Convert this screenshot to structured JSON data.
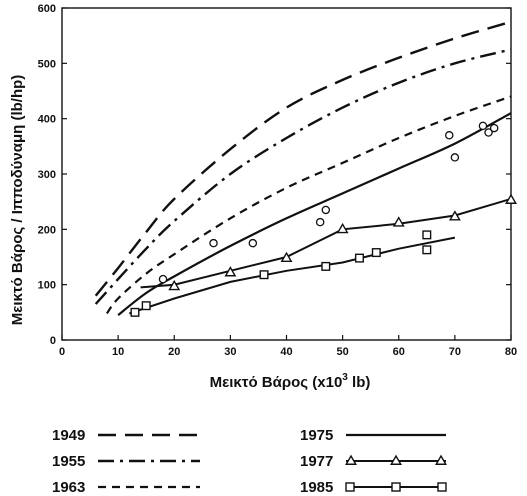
{
  "chart_data": {
    "type": "line",
    "xlabel": "Μεικτό Βάρος (x10",
    "xlabel_exponent": "3",
    "xlabel_unit": " lb)",
    "ylabel": "Μεικτό Βάρος / Ιπποδύναμη (lb/hp)",
    "xlim": [
      0,
      80
    ],
    "ylim": [
      0,
      600
    ],
    "xticks": [
      "0",
      "10",
      "20",
      "30",
      "40",
      "50",
      "60",
      "70",
      "80"
    ],
    "yticks": [
      "0",
      "100",
      "200",
      "300",
      "400",
      "500",
      "600"
    ],
    "grid": false,
    "legend_position": "bottom",
    "series": [
      {
        "name": "1949",
        "style": "long-dash",
        "x": [
          6,
          10,
          15,
          20,
          30,
          40,
          50,
          60,
          70,
          80
        ],
        "y": [
          80,
          130,
          195,
          255,
          345,
          420,
          470,
          510,
          545,
          575
        ]
      },
      {
        "name": "1955",
        "style": "dash-dot",
        "x": [
          6,
          10,
          15,
          20,
          30,
          40,
          50,
          60,
          70,
          80
        ],
        "y": [
          65,
          110,
          165,
          215,
          300,
          365,
          420,
          465,
          500,
          525
        ]
      },
      {
        "name": "1963",
        "style": "short-dash",
        "x": [
          8,
          10,
          15,
          20,
          30,
          40,
          50,
          60,
          70,
          80
        ],
        "y": [
          48,
          75,
          120,
          155,
          220,
          275,
          320,
          365,
          405,
          440
        ]
      },
      {
        "name": "1975",
        "style": "solid",
        "x": [
          10,
          15,
          20,
          30,
          40,
          50,
          60,
          70,
          80
        ],
        "y": [
          45,
          85,
          115,
          170,
          220,
          265,
          310,
          355,
          410
        ]
      },
      {
        "name": "1977",
        "style": "solid-triangle",
        "x": [
          14,
          20,
          30,
          40,
          50,
          60,
          70,
          80
        ],
        "y": [
          95,
          100,
          125,
          150,
          200,
          210,
          225,
          255
        ]
      },
      {
        "name": "1985",
        "style": "solid-square",
        "x": [
          12,
          20,
          30,
          40,
          50,
          60,
          70
        ],
        "y": [
          48,
          75,
          105,
          125,
          140,
          165,
          185
        ]
      }
    ],
    "scatter": {
      "circles": {
        "x": [
          18,
          27,
          34,
          46,
          47,
          69,
          70,
          75,
          76,
          77
        ],
        "y": [
          110,
          175,
          175,
          213,
          235,
          370,
          330,
          387,
          375,
          383
        ]
      },
      "triangles": {
        "x": [
          20,
          30,
          40,
          50,
          60,
          70,
          80
        ],
        "y": [
          97,
          122,
          148,
          200,
          212,
          223,
          253
        ]
      },
      "squares": {
        "x": [
          13,
          15,
          36,
          47,
          53,
          56,
          65,
          65
        ],
        "y": [
          50,
          62,
          118,
          133,
          148,
          158,
          163,
          190
        ]
      }
    }
  }
}
